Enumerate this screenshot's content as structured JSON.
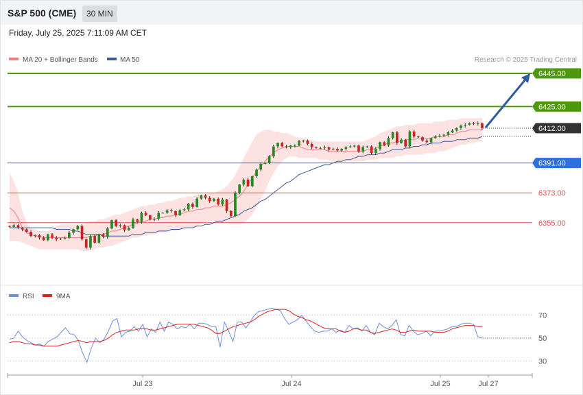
{
  "header": {
    "symbol": "S&P 500 (CME)",
    "timeframe": "30 MIN"
  },
  "date": "Friday, July 25, 2025 7:11:09 AM CET",
  "credit": "Research © 2025 Trading Central",
  "legend": {
    "ma20": "MA 20 + Bollinger Bands",
    "ma50": "MA 50",
    "rsi": "RSI",
    "rsi_ma": "9MA"
  },
  "colors": {
    "up": "#228b22",
    "down": "#cc2222",
    "ma20": "#f08080",
    "ma50": "#3d5a9a",
    "band": "#fde2e2",
    "green_level": "#4c9a0c",
    "blue_level": "#2e6fe0",
    "red_level": "#e05050",
    "last": "#333333",
    "rsi": "#6b8ee0",
    "rsi_ma": "#dd2222"
  },
  "chart_data": [
    {
      "type": "candlestick",
      "yaxis_range": [
        6337,
        6456
      ],
      "x_labels": [
        "Jul 23",
        "Jul 24",
        "Jul 25",
        "Jul 27"
      ],
      "levels": [
        {
          "value": 6445.0,
          "label": "6445.00",
          "kind": "resistance",
          "color": "#4c9a0c"
        },
        {
          "value": 6425.0,
          "label": "6425.00",
          "kind": "resistance",
          "color": "#4c9a0c"
        },
        {
          "value": 6412.0,
          "label": "6412.00",
          "kind": "last",
          "color": "#333333"
        },
        {
          "value": 6391.0,
          "label": "6391.00",
          "kind": "pivot",
          "color": "#2e6fe0"
        },
        {
          "value": 6373.0,
          "label": "6373.00",
          "kind": "support",
          "color": "#e05050"
        },
        {
          "value": 6355.0,
          "label": "6355.00",
          "kind": "support",
          "color": "#e05050"
        }
      ],
      "closes": [
        6352.5,
        6353.5,
        6352,
        6351,
        6349.5,
        6347,
        6347.5,
        6346,
        6344.5,
        6348,
        6346,
        6345,
        6345.5,
        6346,
        6349,
        6351,
        6353,
        6345,
        6340,
        6347,
        6343,
        6348,
        6346.5,
        6351.5,
        6356.5,
        6353,
        6353.5,
        6350.5,
        6352,
        6357,
        6355.5,
        6361,
        6359.5,
        6357,
        6357.5,
        6361,
        6361,
        6362.5,
        6362,
        6359.5,
        6362.5,
        6363,
        6366.5,
        6364.5,
        6369.5,
        6371.5,
        6370,
        6368,
        6369.5,
        6366,
        6369,
        6362,
        6359,
        6373,
        6378,
        6381,
        6377,
        6383,
        6387,
        6390.5,
        6391,
        6395,
        6401,
        6403,
        6401,
        6400.5,
        6401.5,
        6401.5,
        6404,
        6404.5,
        6402.5,
        6400.5,
        6400,
        6400,
        6400.5,
        6399,
        6399.5,
        6398.5,
        6399.5,
        6400.5,
        6401,
        6401.5,
        6398,
        6400.5,
        6401,
        6397,
        6399.5,
        6403.5,
        6401.5,
        6406,
        6409.5,
        6403,
        6405,
        6401,
        6410,
        6407,
        6406.5,
        6404.5,
        6403.5,
        6406,
        6407,
        6407.5,
        6408,
        6409.5,
        6410.5,
        6412,
        6413.5,
        6414,
        6415,
        6414.5,
        6415,
        6412
      ],
      "bollinger_upper": [
        6385,
        6380,
        6373,
        6362,
        6355,
        6352,
        6351,
        6350,
        6350,
        6350,
        6351,
        6353,
        6354,
        6354,
        6354,
        6354,
        6354,
        6354,
        6355,
        6356,
        6356,
        6357,
        6357,
        6358,
        6359,
        6360,
        6360,
        6361,
        6362,
        6363,
        6364,
        6365,
        6365,
        6366,
        6366,
        6367,
        6367,
        6368,
        6368,
        6369,
        6370,
        6370,
        6371,
        6371,
        6372,
        6372,
        6372,
        6373,
        6373,
        6374,
        6375,
        6377,
        6380,
        6384,
        6389,
        6394,
        6399,
        6404,
        6408,
        6410,
        6411,
        6411,
        6410,
        6410,
        6409,
        6409,
        6408,
        6407,
        6406,
        6406,
        6405,
        6405,
        6404,
        6404,
        6404,
        6404,
        6404,
        6404,
        6404,
        6404,
        6404,
        6404,
        6404,
        6404,
        6405,
        6406,
        6407,
        6409,
        6410,
        6411,
        6412,
        6413,
        6413,
        6414,
        6414,
        6414,
        6415,
        6415,
        6415,
        6415,
        6416,
        6416,
        6416,
        6417,
        6417,
        6417,
        6418,
        6418,
        6418,
        6418,
        6418,
        6418
      ],
      "bollinger_lower": [
        6344,
        6344,
        6344,
        6343,
        6342,
        6341,
        6340,
        6339,
        6339,
        6339,
        6339,
        6339,
        6339,
        6339,
        6339,
        6339,
        6339,
        6338,
        6338,
        6338,
        6339,
        6340,
        6340,
        6341,
        6341,
        6342,
        6343,
        6344,
        6345,
        6346,
        6346,
        6347,
        6347,
        6348,
        6348,
        6349,
        6349,
        6350,
        6350,
        6350,
        6351,
        6351,
        6352,
        6352,
        6353,
        6354,
        6355,
        6356,
        6356,
        6355,
        6355,
        6355,
        6354,
        6354,
        6354,
        6355,
        6357,
        6360,
        6364,
        6369,
        6374,
        6380,
        6385,
        6389,
        6392,
        6394,
        6395,
        6395,
        6394,
        6394,
        6394,
        6394,
        6394,
        6393,
        6393,
        6393,
        6392,
        6392,
        6392,
        6392,
        6392,
        6392,
        6392,
        6392,
        6393,
        6393,
        6393,
        6394,
        6394,
        6394,
        6394,
        6395,
        6395,
        6396,
        6396,
        6396,
        6396,
        6396,
        6397,
        6397,
        6397,
        6398,
        6398,
        6399,
        6400,
        6401,
        6402,
        6402,
        6403,
        6403,
        6404,
        6404
      ],
      "ma20": [
        6364,
        6362,
        6358,
        6352,
        6349,
        6348,
        6347,
        6347,
        6346,
        6346,
        6346,
        6346,
        6346,
        6346,
        6346,
        6346,
        6346,
        6346,
        6346,
        6347,
        6347,
        6348,
        6348,
        6349,
        6350,
        6350,
        6351,
        6352,
        6353,
        6354,
        6355,
        6356,
        6356,
        6357,
        6357,
        6358,
        6358,
        6359,
        6359,
        6360,
        6360,
        6361,
        6362,
        6362,
        6363,
        6363,
        6364,
        6364,
        6365,
        6365,
        6365,
        6366,
        6367,
        6369,
        6371,
        6374,
        6378,
        6382,
        6386,
        6389,
        6392,
        6395,
        6397,
        6399,
        6400,
        6401,
        6401,
        6401,
        6401,
        6400,
        6399,
        6399,
        6399,
        6399,
        6399,
        6398,
        6398,
        6398,
        6398,
        6398,
        6398,
        6398,
        6398,
        6398,
        6399,
        6399,
        6400,
        6401,
        6402,
        6403,
        6403,
        6404,
        6404,
        6405,
        6405,
        6405,
        6406,
        6406,
        6406,
        6406,
        6407,
        6407,
        6407,
        6408,
        6408,
        6409,
        6410,
        6410,
        6411,
        6411,
        6411,
        6411
      ],
      "ma50": [
        6352,
        6352,
        6352,
        6352,
        6352,
        6352,
        6352,
        6352,
        6352,
        6352,
        6352,
        6351,
        6351,
        6351,
        6351,
        6350,
        6350,
        6349,
        6348,
        6348,
        6348,
        6348,
        6347,
        6347,
        6347,
        6347,
        6347,
        6347,
        6347,
        6348,
        6348,
        6348,
        6349,
        6349,
        6349,
        6350,
        6350,
        6350,
        6351,
        6351,
        6351,
        6352,
        6352,
        6352,
        6353,
        6353,
        6354,
        6354,
        6355,
        6356,
        6356,
        6357,
        6358,
        6359,
        6360,
        6362,
        6363,
        6364,
        6366,
        6368,
        6369,
        6371,
        6373,
        6375,
        6377,
        6379,
        6380,
        6382,
        6384,
        6385,
        6386,
        6387,
        6388,
        6389,
        6390,
        6390,
        6391,
        6392,
        6392,
        6393,
        6393,
        6394,
        6395,
        6395,
        6396,
        6396,
        6396,
        6397,
        6397,
        6398,
        6399,
        6399,
        6399,
        6400,
        6400,
        6401,
        6401,
        6402,
        6402,
        6403,
        6403,
        6403,
        6404,
        6404,
        6404,
        6405,
        6405,
        6405,
        6406,
        6406,
        6406,
        6407
      ]
    },
    {
      "type": "line",
      "title": "RSI",
      "yaxis_ticks": [
        30,
        50,
        70
      ],
      "rsi": [
        49,
        50,
        56,
        51,
        48,
        46,
        44,
        45,
        43,
        47,
        49,
        51,
        55,
        59,
        54,
        53,
        48,
        37,
        29,
        41,
        50,
        46,
        49,
        56,
        65,
        67,
        51,
        55,
        56,
        60,
        56,
        62,
        51,
        58,
        55,
        64,
        56,
        64,
        62,
        58,
        60,
        59,
        62,
        58,
        63,
        63,
        62,
        60,
        60,
        42,
        64,
        56,
        47,
        64,
        64,
        59,
        64,
        70,
        73,
        74,
        75,
        76,
        75,
        74,
        67,
        62,
        64,
        66,
        70,
        65,
        60,
        56,
        55,
        56,
        56,
        58,
        55,
        57,
        55,
        61,
        58,
        59,
        56,
        61,
        55,
        53,
        63,
        60,
        58,
        61,
        66,
        53,
        52,
        61,
        56,
        53,
        54,
        56,
        52,
        56,
        56,
        57,
        58,
        60,
        60,
        62,
        63,
        63,
        62,
        51,
        50
      ],
      "rsi_ma": [
        46,
        47,
        47,
        46,
        45,
        45,
        44,
        44,
        43,
        43,
        43,
        43,
        44,
        45,
        46,
        47,
        48,
        47,
        46,
        47,
        47,
        47,
        48,
        50,
        53,
        55,
        56,
        57,
        57,
        57,
        58,
        58,
        58,
        57,
        57,
        58,
        59,
        60,
        61,
        62,
        62,
        62,
        62,
        62,
        61,
        60,
        59,
        57,
        54,
        54,
        56,
        58,
        60,
        61,
        62,
        63,
        64,
        66,
        69,
        71,
        73,
        74,
        75,
        75,
        75,
        74,
        71,
        69,
        68,
        66,
        65,
        63,
        61,
        59,
        58,
        58,
        58,
        56,
        55,
        56,
        58,
        58,
        57,
        57,
        55,
        54,
        55,
        56,
        57,
        58,
        57,
        55,
        55,
        56,
        57,
        56,
        56,
        56,
        56,
        55,
        55,
        55,
        56,
        58,
        59,
        60,
        61,
        61,
        61,
        60,
        60
      ]
    }
  ]
}
